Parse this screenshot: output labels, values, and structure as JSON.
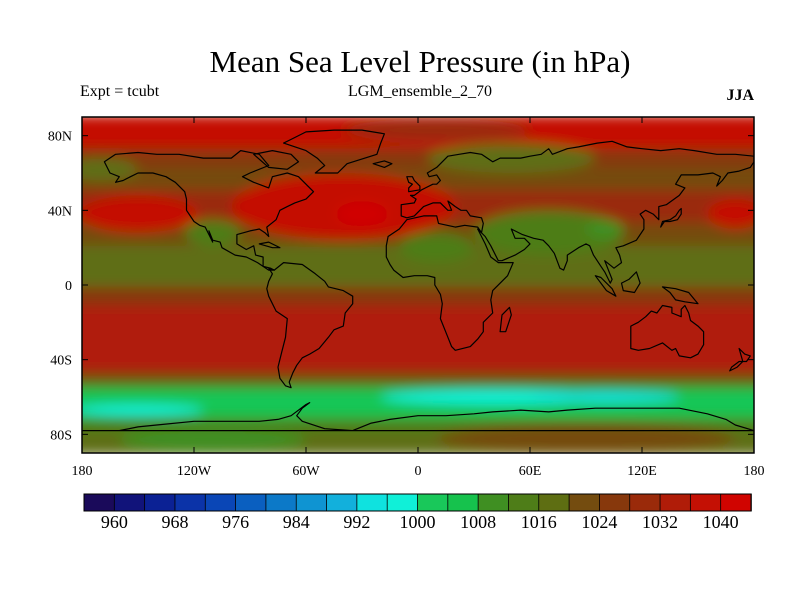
{
  "title": "Mean Sea Level Pressure (in hPa)",
  "experiment_label": "Expt = tcubt",
  "ensemble_label": "LGM_ensemble_2_70",
  "season_label": "JJA",
  "map": {
    "projection": "cylindrical-equidistant",
    "lon_range": [
      -180,
      180
    ],
    "lat_range": [
      -90,
      90
    ],
    "x_ticks": [
      {
        "value": -180,
        "label": "180"
      },
      {
        "value": -120,
        "label": "120W"
      },
      {
        "value": -60,
        "label": "60W"
      },
      {
        "value": 0,
        "label": "0"
      },
      {
        "value": 60,
        "label": "60E"
      },
      {
        "value": 120,
        "label": "120E"
      },
      {
        "value": 180,
        "label": "180"
      }
    ],
    "y_ticks": [
      {
        "value": 80,
        "label": "80N"
      },
      {
        "value": 40,
        "label": "40N"
      },
      {
        "value": 0,
        "label": "0"
      },
      {
        "value": -40,
        "label": "40S"
      },
      {
        "value": -80,
        "label": "80S"
      }
    ]
  },
  "colorbar": {
    "unit": "hPa",
    "boundaries": [
      960,
      964,
      968,
      972,
      976,
      980,
      984,
      988,
      992,
      996,
      1000,
      1004,
      1008,
      1012,
      1016,
      1020,
      1024,
      1028,
      1032,
      1036,
      1040
    ],
    "colors": [
      "#1a0a5a",
      "#11137a",
      "#0b2194",
      "#0b33a8",
      "#0a46b6",
      "#0a5fc0",
      "#0c79c8",
      "#0f94d2",
      "#12b0dc",
      "#0fe2df",
      "#10f0d8",
      "#19c85a",
      "#16c24d",
      "#3f8f22",
      "#4e7d18",
      "#5e6e12",
      "#744c0f",
      "#87380c",
      "#9a2a0a",
      "#b01c08",
      "#c41004",
      "#d00400"
    ],
    "labels": [
      {
        "value": 960,
        "text": "960"
      },
      {
        "value": 968,
        "text": "968"
      },
      {
        "value": 976,
        "text": "976"
      },
      {
        "value": 984,
        "text": "984"
      },
      {
        "value": 992,
        "text": "992"
      },
      {
        "value": 1000,
        "text": "1000"
      },
      {
        "value": 1008,
        "text": "1008"
      },
      {
        "value": 1016,
        "text": "1016"
      },
      {
        "value": 1024,
        "text": "1024"
      },
      {
        "value": 1032,
        "text": "1032"
      },
      {
        "value": 1040,
        "text": "1040"
      }
    ]
  },
  "field_bands": [
    {
      "lat_from": 90,
      "lat_to": 72,
      "value": 1036
    },
    {
      "lat_from": 72,
      "lat_to": 62,
      "value": 1026
    },
    {
      "lat_from": 62,
      "lat_to": 50,
      "value": 1020
    },
    {
      "lat_from": 50,
      "lat_to": 32,
      "value": 1030
    },
    {
      "lat_from": 32,
      "lat_to": 20,
      "value": 1022
    },
    {
      "lat_from": 20,
      "lat_to": -2,
      "value": 1018
    },
    {
      "lat_from": -2,
      "lat_to": -12,
      "value": 1024
    },
    {
      "lat_from": -12,
      "lat_to": -48,
      "value": 1032
    },
    {
      "lat_from": -48,
      "lat_to": -53,
      "value": 1022
    },
    {
      "lat_from": -53,
      "lat_to": -56,
      "value": 1012
    },
    {
      "lat_from": -56,
      "lat_to": -60,
      "value": 1006
    },
    {
      "lat_from": -60,
      "lat_to": -67,
      "value": 1000
    },
    {
      "lat_from": -67,
      "lat_to": -73,
      "value": 1006
    },
    {
      "lat_from": -73,
      "lat_to": -80,
      "value": 1012
    },
    {
      "lat_from": -80,
      "lat_to": -90,
      "value": 1018
    }
  ],
  "field_blobs": [
    {
      "lon": -40,
      "lat": 42,
      "rlon": 60,
      "rlat": 18,
      "value": 1036
    },
    {
      "lon": -30,
      "lat": 38,
      "rlon": 14,
      "rlat": 7,
      "value": 1040
    },
    {
      "lon": -150,
      "lat": 38,
      "rlon": 32,
      "rlat": 10,
      "value": 1036
    },
    {
      "lon": 170,
      "lat": 38,
      "rlon": 15,
      "rlat": 8,
      "value": 1036
    },
    {
      "lon": 70,
      "lat": 28,
      "rlon": 40,
      "rlat": 12,
      "value": 1014
    },
    {
      "lon": 100,
      "lat": 30,
      "rlon": 10,
      "rlat": 5,
      "value": 1008
    },
    {
      "lon": 10,
      "lat": 20,
      "rlon": 20,
      "rlat": 8,
      "value": 1014
    },
    {
      "lon": -110,
      "lat": 28,
      "rlon": 15,
      "rlat": 7,
      "value": 1014
    },
    {
      "lon": -170,
      "lat": 62,
      "rlon": 20,
      "rlat": 6,
      "value": 1016
    },
    {
      "lon": 50,
      "lat": 68,
      "rlon": 45,
      "rlat": 8,
      "value": 1018
    },
    {
      "lon": 10,
      "lat": 83,
      "rlon": 50,
      "rlat": 6,
      "value": 1030
    },
    {
      "lon": 40,
      "lat": -60,
      "rlon": 60,
      "rlat": 4,
      "value": 998
    },
    {
      "lon": 100,
      "lat": -60,
      "rlon": 40,
      "rlat": 3,
      "value": 994
    },
    {
      "lon": -150,
      "lat": -67,
      "rlon": 35,
      "rlat": 3,
      "value": 998
    },
    {
      "lon": 90,
      "lat": -82,
      "rlon": 80,
      "rlat": 8,
      "value": 1020
    },
    {
      "lon": -110,
      "lat": -83,
      "rlon": 50,
      "rlat": 6,
      "value": 1008
    }
  ]
}
